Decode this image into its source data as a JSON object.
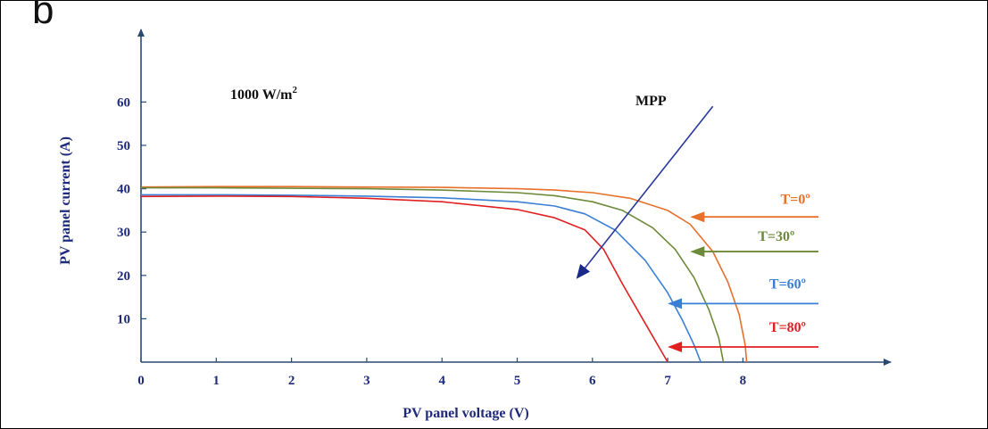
{
  "panel_letter": "b",
  "chart_data": {
    "type": "line",
    "xlabel": "PV panel voltage (V)",
    "ylabel": "PV panel current (A)",
    "xlim": [
      0,
      10
    ],
    "ylim": [
      0,
      70
    ],
    "xticks": [
      "0",
      "1",
      "2",
      "3",
      "4",
      "5",
      "6",
      "7",
      "8"
    ],
    "yticks": [
      "10",
      "20",
      "30",
      "40",
      "50",
      "60"
    ],
    "annotations": {
      "irradiance": "1000 W/m",
      "irradiance_sup": "2",
      "mpp": "MPP"
    },
    "mpp_arrow": {
      "from": [
        7.6,
        59
      ],
      "to": [
        5.8,
        19.5
      ]
    },
    "series": [
      {
        "name": "T=0º",
        "color": "#e8702a",
        "x": [
          0,
          1,
          2,
          3,
          4,
          5,
          5.5,
          6.0,
          6.5,
          7.0,
          7.3,
          7.6,
          7.8,
          7.95,
          8.03,
          8.05
        ],
        "y": [
          40.4,
          40.5,
          40.5,
          40.4,
          40.3,
          40.0,
          39.7,
          39.1,
          37.8,
          35.0,
          31.8,
          25.5,
          18.5,
          11.0,
          4.0,
          0
        ],
        "label_anchor": [
          7.3,
          33.5
        ],
        "label_pos": [
          8.5,
          36.5
        ]
      },
      {
        "name": "T=30º",
        "color": "#6b8a3a",
        "x": [
          0,
          1,
          2,
          3,
          4,
          5,
          5.5,
          6.0,
          6.4,
          6.8,
          7.1,
          7.35,
          7.55,
          7.68,
          7.74
        ],
        "y": [
          40.2,
          40.2,
          40.1,
          40.0,
          39.7,
          39.1,
          38.4,
          37.0,
          35.0,
          31.0,
          26.0,
          19.5,
          12.0,
          5.5,
          0
        ],
        "label_anchor": [
          7.3,
          25.5
        ],
        "label_pos": [
          8.2,
          28.0
        ]
      },
      {
        "name": "T=60º",
        "color": "#3a7fd5",
        "x": [
          0,
          1,
          2,
          3,
          4,
          5,
          5.5,
          5.9,
          6.3,
          6.7,
          7.0,
          7.2,
          7.35,
          7.44
        ],
        "y": [
          38.6,
          38.6,
          38.5,
          38.3,
          37.9,
          37.0,
          36.0,
          34.2,
          30.5,
          23.5,
          16.0,
          9.5,
          4.0,
          0
        ],
        "label_anchor": [
          7.0,
          13.5
        ],
        "label_pos": [
          8.35,
          17.0
        ]
      },
      {
        "name": "T=80º",
        "color": "#e02020",
        "x": [
          0,
          1,
          2,
          3,
          4,
          5,
          5.5,
          5.9,
          6.15,
          6.4,
          6.7,
          7.0
        ],
        "y": [
          38.2,
          38.3,
          38.2,
          37.8,
          37.0,
          35.2,
          33.3,
          30.5,
          26.0,
          18.0,
          9.0,
          0
        ],
        "label_anchor": [
          7.0,
          3.5
        ],
        "label_pos": [
          8.35,
          7.0
        ]
      }
    ]
  }
}
